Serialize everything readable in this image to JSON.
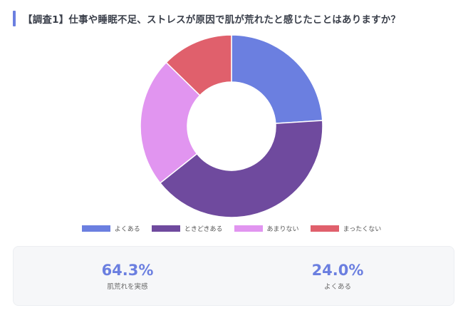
{
  "title": "【調査1】仕事や睡眠不足、ストレスが原因で肌が荒れたと感じたことはありますか？",
  "chart_data": {
    "type": "pie",
    "donut": true,
    "categories": [
      "よくある",
      "ときどきある",
      "あまりない",
      "まったくない"
    ],
    "values": [
      24.0,
      40.3,
      23.0,
      12.7
    ],
    "colors": [
      "#6b7fe0",
      "#6f4a9e",
      "#e195f0",
      "#e0606c"
    ],
    "legend_position": "bottom"
  },
  "stats": [
    {
      "value": "64.3%",
      "label": "肌荒れを実感"
    },
    {
      "value": "24.0%",
      "label": "よくある"
    }
  ]
}
